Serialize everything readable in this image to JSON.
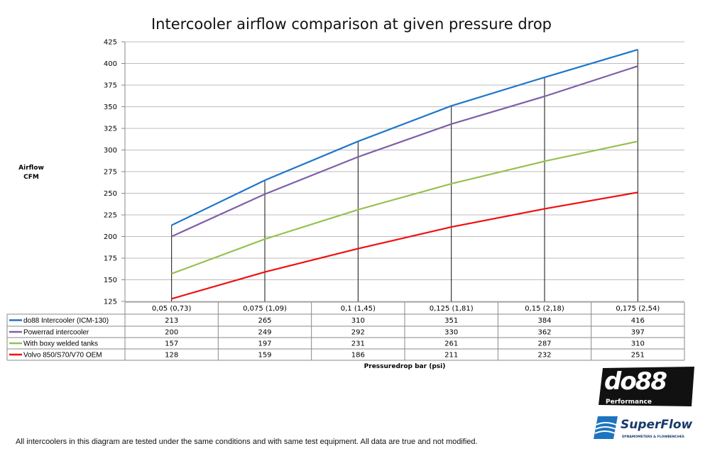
{
  "chart_data": {
    "type": "line",
    "title": "Intercooler airflow comparison at given pressure drop",
    "xlabel": "Pressuredrop bar (psi)",
    "ylabel": [
      "Airflow",
      "CFM"
    ],
    "categories": [
      "0,05 (0,73)",
      "0,075 (1,09)",
      "0,1 (1,45)",
      "0,125 (1,81)",
      "0,15 (2,18)",
      "0,175 (2,54)"
    ],
    "ylim": [
      125,
      425
    ],
    "yticks": [
      125,
      150,
      175,
      200,
      225,
      250,
      275,
      300,
      325,
      350,
      375,
      400,
      425
    ],
    "grid": true,
    "legend": "data table below chart",
    "series": [
      {
        "name": "do88 Intercooler (ICM-130)",
        "color": "#1f77c8",
        "values": [
          213,
          265,
          310,
          351,
          384,
          416
        ]
      },
      {
        "name": "Powerrad intercooler",
        "color": "#7e60a8",
        "values": [
          200,
          249,
          292,
          330,
          362,
          397
        ]
      },
      {
        "name": "With boxy welded tanks",
        "color": "#96c150",
        "values": [
          157,
          197,
          231,
          261,
          287,
          310
        ]
      },
      {
        "name": "Volvo 850/S70/V70 OEM",
        "color": "#f01010",
        "values": [
          128,
          159,
          186,
          211,
          232,
          251
        ]
      }
    ]
  },
  "footer": "All intercoolers in this diagram are tested under the same conditions and with same test equipment. All data are true and not modified.",
  "logos": {
    "do88": "do88",
    "do88_sub": "Performance",
    "superflow": "SuperFlow",
    "superflow_sub": "DYNAMOMETERS & FLOWBENCHES"
  }
}
